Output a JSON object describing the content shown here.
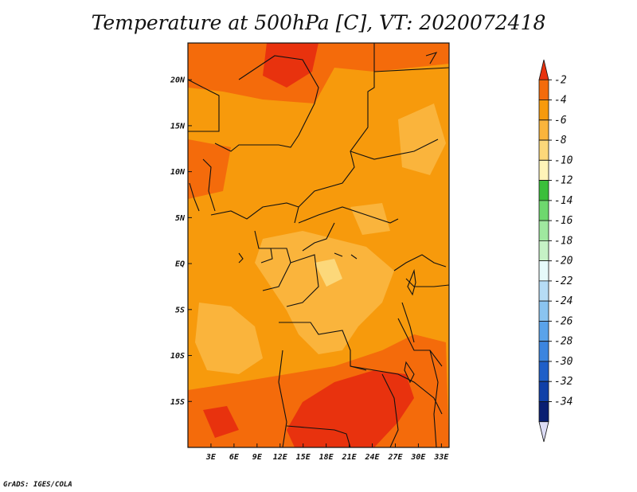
{
  "title": "Temperature at 500hPa [C], VT: 2020072418",
  "footer": "GrADS: IGES/COLA",
  "map": {
    "variable": "Temperature at 500hPa",
    "units": "C",
    "valid_time": "2020072418",
    "lon_range": [
      0,
      34
    ],
    "lat_range": [
      -20,
      24
    ],
    "x_ticks": [
      "3E",
      "6E",
      "9E",
      "12E",
      "15E",
      "18E",
      "21E",
      "24E",
      "27E",
      "30E",
      "33E"
    ],
    "x_tick_values": [
      3,
      6,
      9,
      12,
      15,
      18,
      21,
      24,
      27,
      30,
      33
    ],
    "y_ticks": [
      "20N",
      "15N",
      "10N",
      "5N",
      "EQ",
      "5S",
      "10S",
      "15S"
    ],
    "y_tick_values": [
      20,
      15,
      10,
      5,
      0,
      -5,
      -10,
      -15
    ]
  },
  "colorbar": {
    "labels": [
      "-2",
      "-4",
      "-6",
      "-8",
      "-10",
      "-12",
      "-14",
      "-16",
      "-18",
      "-20",
      "-22",
      "-24",
      "-26",
      "-28",
      "-30",
      "-32",
      "-34"
    ],
    "colors": [
      "#e8320e",
      "#f46b0b",
      "#f79a0c",
      "#fab43c",
      "#fcd87a",
      "#fff4b8",
      "#3bbf3b",
      "#6ed86e",
      "#9fe89f",
      "#c6f2c6",
      "#e6fafa",
      "#b6dcf5",
      "#8ac4f0",
      "#5aa3ea",
      "#3c85df",
      "#1f5fc8",
      "#1040a8",
      "#0a1f72",
      "#dcdcf5"
    ]
  }
}
